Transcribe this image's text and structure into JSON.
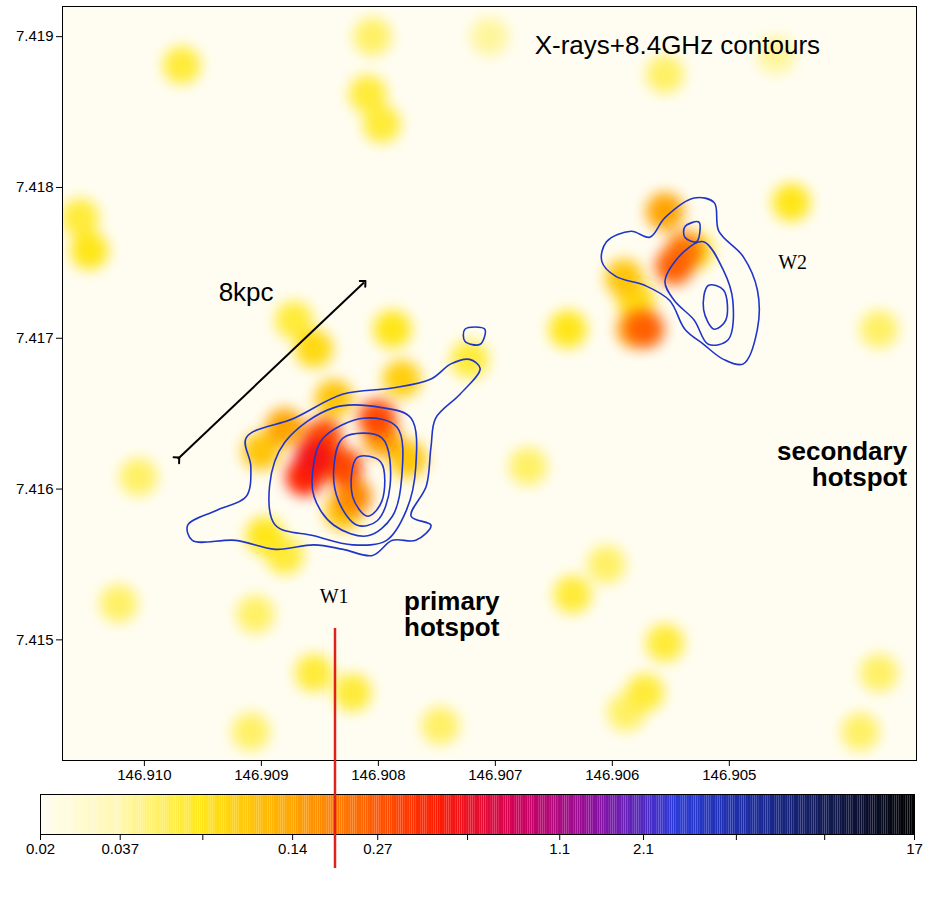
{
  "chart_data": {
    "type": "heatmap",
    "annotations": [
      "X-rays+8.4GHz contours",
      "8kpc",
      "W1",
      "W2",
      "primary hotspot",
      "secondary hotspot"
    ],
    "xlim": [
      146.9107,
      146.9034
    ],
    "xticks": [
      {
        "value": 146.91,
        "label": "146.910"
      },
      146.909,
      146.908,
      146.907,
      146.906,
      146.905
    ],
    "ylim": [
      7.4142,
      7.4192
    ],
    "yticks": [
      7.415,
      7.416,
      7.417,
      7.418,
      7.419
    ],
    "colorbar": {
      "lim": [
        0.02,
        17
      ],
      "ticks": [
        0.02,
        0.037,
        0.07,
        0.14,
        0.27,
        0.54,
        1.1,
        2.1,
        4.3,
        8.5,
        17
      ],
      "log": true
    },
    "cells": [
      [
        146.90705,
        7.419,
        0.04
      ],
      [
        146.9046,
        7.41888,
        0.04
      ],
      [
        146.90805,
        7.419,
        0.05
      ],
      [
        146.91005,
        7.41608,
        0.05
      ],
      [
        146.91022,
        7.41524,
        0.05
      ],
      [
        146.90909,
        7.41439,
        0.05
      ],
      [
        146.90747,
        7.41443,
        0.05
      ],
      [
        146.90672,
        7.41615,
        0.05
      ],
      [
        146.90605,
        7.4155,
        0.05
      ],
      [
        146.90588,
        7.41452,
        0.05
      ],
      [
        146.90372,
        7.41478,
        0.05
      ],
      [
        146.90388,
        7.41439,
        0.05
      ],
      [
        146.90372,
        7.41706,
        0.05
      ],
      [
        146.90555,
        7.41875,
        0.05
      ],
      [
        146.90905,
        7.41517,
        0.05
      ],
      [
        146.90968,
        7.41881,
        0.06
      ],
      [
        146.91055,
        7.4178,
        0.06
      ],
      [
        146.90809,
        7.41862,
        0.06
      ],
      [
        146.90797,
        7.41842,
        0.06
      ],
      [
        146.90855,
        7.41478,
        0.06
      ],
      [
        146.90822,
        7.41465,
        0.06
      ],
      [
        146.90634,
        7.4153,
        0.06
      ],
      [
        146.90555,
        7.41498,
        0.06
      ],
      [
        146.90572,
        7.41465,
        0.06
      ],
      [
        146.90872,
        7.41712,
        0.06
      ],
      [
        146.90722,
        7.41686,
        0.06
      ],
      [
        146.9088,
        7.41556,
        0.06
      ],
      [
        146.91047,
        7.41758,
        0.07
      ],
      [
        146.90638,
        7.41706,
        0.07
      ],
      [
        146.90447,
        7.4179,
        0.07
      ],
      [
        146.90788,
        7.41706,
        0.07
      ],
      [
        146.90897,
        7.41569,
        0.07
      ],
      [
        146.9053,
        7.41758,
        0.07
      ],
      [
        146.90855,
        7.41693,
        0.08
      ],
      [
        146.9058,
        7.41725,
        0.08
      ],
      [
        146.9078,
        7.41673,
        0.09
      ],
      [
        146.909,
        7.41625,
        0.1
      ],
      [
        146.90775,
        7.4162,
        0.1
      ],
      [
        146.90838,
        7.4166,
        0.1
      ],
      [
        146.9083,
        7.41585,
        0.1
      ],
      [
        146.9059,
        7.4174,
        0.1
      ],
      [
        146.9088,
        7.41641,
        0.14
      ],
      [
        146.90555,
        7.41784,
        0.14
      ],
      [
        146.90797,
        7.41634,
        0.15
      ],
      [
        146.9058,
        7.41706,
        0.15
      ],
      [
        146.90822,
        7.41595,
        0.18
      ],
      [
        146.90855,
        7.41615,
        0.2
      ],
      [
        146.90538,
        7.41758,
        0.2
      ],
      [
        146.90572,
        7.41706,
        0.25
      ],
      [
        146.90547,
        7.41748,
        0.25
      ],
      [
        146.90847,
        7.41634,
        0.3
      ],
      [
        146.9083,
        7.41615,
        0.3
      ],
      [
        146.90801,
        7.41647,
        0.3
      ],
      [
        146.90863,
        7.41608,
        0.4
      ],
      [
        146.90855,
        7.41621,
        0.5
      ]
    ],
    "contours": {
      "color": "#1f35c9",
      "lines": [
        [
          [
            146.90913,
            7.41634
          ],
          [
            146.90872,
            7.41647
          ],
          [
            146.9083,
            7.41663
          ],
          [
            146.90788,
            7.41667
          ],
          [
            146.90755,
            7.41673
          ],
          [
            146.90738,
            7.41683
          ],
          [
            146.90722,
            7.41686
          ],
          [
            146.90713,
            7.4168
          ],
          [
            146.9073,
            7.41663
          ],
          [
            146.90751,
            7.41647
          ],
          [
            146.90755,
            7.41628
          ],
          [
            146.90759,
            7.41602
          ],
          [
            146.90772,
            7.41582
          ],
          [
            146.90755,
            7.41576
          ],
          [
            146.90768,
            7.41566
          ],
          [
            146.90788,
            7.41566
          ],
          [
            146.90805,
            7.41556
          ],
          [
            146.9083,
            7.4156
          ],
          [
            146.90855,
            7.41563
          ],
          [
            146.90888,
            7.4156
          ],
          [
            146.90922,
            7.41566
          ],
          [
            146.90959,
            7.41566
          ],
          [
            146.90963,
            7.41576
          ],
          [
            146.90938,
            7.41586
          ],
          [
            146.90913,
            7.41595
          ],
          [
            146.90909,
            7.41615
          ]
        ],
        [
          [
            146.9088,
            7.41631
          ],
          [
            146.90838,
            7.41654
          ],
          [
            146.90797,
            7.41654
          ],
          [
            146.90772,
            7.41647
          ],
          [
            146.90768,
            7.41615
          ],
          [
            146.90776,
            7.41586
          ],
          [
            146.90793,
            7.41566
          ],
          [
            146.90822,
            7.41563
          ],
          [
            146.90855,
            7.41569
          ],
          [
            146.90888,
            7.41576
          ],
          [
            146.90893,
            7.41602
          ]
        ],
        [
          [
            146.90847,
            7.41634
          ],
          [
            146.90813,
            7.41647
          ],
          [
            146.90784,
            7.41641
          ],
          [
            146.9078,
            7.41608
          ],
          [
            146.90788,
            7.41582
          ],
          [
            146.90809,
            7.41569
          ],
          [
            146.90838,
            7.41576
          ],
          [
            146.90855,
            7.41595
          ],
          [
            146.90855,
            7.41618
          ]
        ],
        [
          [
            146.9083,
            7.41634
          ],
          [
            146.90797,
            7.41634
          ],
          [
            146.9079,
            7.41602
          ],
          [
            146.90801,
            7.41579
          ],
          [
            146.90818,
            7.41576
          ],
          [
            146.90834,
            7.41592
          ],
          [
            146.90838,
            7.41615
          ]
        ],
        [
          [
            146.90818,
            7.41621
          ],
          [
            146.90798,
            7.41618
          ],
          [
            146.90797,
            7.41592
          ],
          [
            146.90809,
            7.41582
          ],
          [
            146.90822,
            7.41595
          ]
        ],
        [
          [
            146.90609,
            7.41751
          ],
          [
            146.90605,
            7.41764
          ],
          [
            146.90584,
            7.41771
          ],
          [
            146.90568,
            7.41767
          ],
          [
            146.90555,
            7.4178
          ],
          [
            146.9053,
            7.41793
          ],
          [
            146.90513,
            7.4179
          ],
          [
            146.90509,
            7.41771
          ],
          [
            146.90488,
            7.41754
          ],
          [
            146.90476,
            7.41732
          ],
          [
            146.90476,
            7.41706
          ],
          [
            146.90488,
            7.41683
          ],
          [
            146.90505,
            7.41686
          ],
          [
            146.90522,
            7.41696
          ],
          [
            146.90538,
            7.41706
          ],
          [
            146.90551,
            7.41725
          ],
          [
            146.90572,
            7.41735
          ],
          [
            146.90597,
            7.41741
          ]
        ],
        [
          [
            146.90555,
            7.41738
          ],
          [
            146.90538,
            7.41758
          ],
          [
            146.90522,
            7.41764
          ],
          [
            146.90505,
            7.41745
          ],
          [
            146.90497,
            7.41725
          ],
          [
            146.90501,
            7.41699
          ],
          [
            146.90518,
            7.41696
          ],
          [
            146.9053,
            7.41712
          ],
          [
            146.90547,
            7.41725
          ]
        ],
        [
          [
            146.90518,
            7.41735
          ],
          [
            146.90505,
            7.41732
          ],
          [
            146.90503,
            7.41712
          ],
          [
            146.90513,
            7.41706
          ],
          [
            146.90522,
            7.41719
          ]
        ],
        [
          [
            146.90538,
            7.41774
          ],
          [
            146.90526,
            7.41777
          ],
          [
            146.90528,
            7.41764
          ],
          [
            146.90538,
            7.41767
          ]
        ],
        [
          [
            146.90726,
            7.41706
          ],
          [
            146.90709,
            7.41706
          ],
          [
            146.90713,
            7.41696
          ],
          [
            146.90726,
            7.41698
          ]
        ]
      ]
    }
  }
}
